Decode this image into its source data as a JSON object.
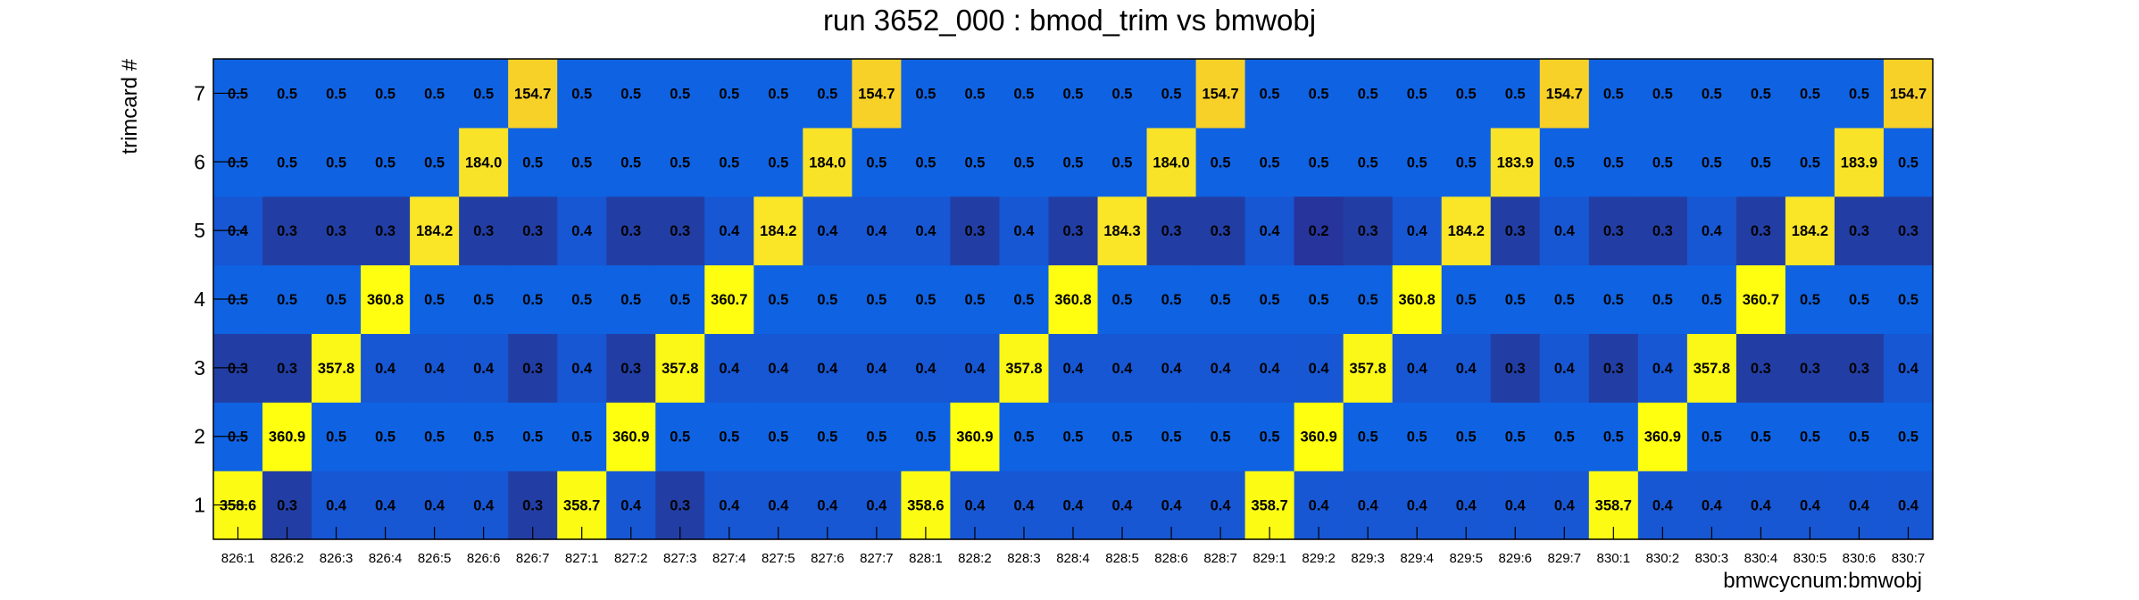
{
  "chart_data": {
    "type": "heatmap",
    "title": "run 3652_000 : bmod_trim vs bmwobj",
    "xlabel": "bmwcycnum:bmwobj",
    "ylabel": "trimcard #",
    "x_categories": [
      "826:1",
      "826:2",
      "826:3",
      "826:4",
      "826:5",
      "826:6",
      "826:7",
      "827:1",
      "827:2",
      "827:3",
      "827:4",
      "827:5",
      "827:6",
      "827:7",
      "828:1",
      "828:2",
      "828:3",
      "828:4",
      "828:5",
      "828:6",
      "828:7",
      "829:1",
      "829:2",
      "829:3",
      "829:4",
      "829:5",
      "829:6",
      "829:7",
      "830:1",
      "830:2",
      "830:3",
      "830:4",
      "830:5",
      "830:6",
      "830:7"
    ],
    "y_categories": [
      "1",
      "2",
      "3",
      "4",
      "5",
      "6",
      "7"
    ],
    "values": [
      [
        "358.6",
        "0.3",
        "0.4",
        "0.4",
        "0.4",
        "0.4",
        "0.3",
        "358.7",
        "0.4",
        "0.3",
        "0.4",
        "0.4",
        "0.4",
        "0.4",
        "358.6",
        "0.4",
        "0.4",
        "0.4",
        "0.4",
        "0.4",
        "0.4",
        "358.7",
        "0.4",
        "0.4",
        "0.4",
        "0.4",
        "0.4",
        "0.4",
        "358.7",
        "0.4",
        "0.4",
        "0.4",
        "0.4",
        "0.4",
        "0.4"
      ],
      [
        "0.5",
        "360.9",
        "0.5",
        "0.5",
        "0.5",
        "0.5",
        "0.5",
        "0.5",
        "360.9",
        "0.5",
        "0.5",
        "0.5",
        "0.5",
        "0.5",
        "0.5",
        "360.9",
        "0.5",
        "0.5",
        "0.5",
        "0.5",
        "0.5",
        "0.5",
        "360.9",
        "0.5",
        "0.5",
        "0.5",
        "0.5",
        "0.5",
        "0.5",
        "360.9",
        "0.5",
        "0.5",
        "0.5",
        "0.5",
        "0.5"
      ],
      [
        "0.3",
        "0.3",
        "357.8",
        "0.4",
        "0.4",
        "0.4",
        "0.3",
        "0.4",
        "0.3",
        "357.8",
        "0.4",
        "0.4",
        "0.4",
        "0.4",
        "0.4",
        "0.4",
        "357.8",
        "0.4",
        "0.4",
        "0.4",
        "0.4",
        "0.4",
        "0.4",
        "357.8",
        "0.4",
        "0.4",
        "0.3",
        "0.4",
        "0.3",
        "0.4",
        "357.8",
        "0.3",
        "0.3",
        "0.3",
        "0.4"
      ],
      [
        "0.5",
        "0.5",
        "0.5",
        "360.8",
        "0.5",
        "0.5",
        "0.5",
        "0.5",
        "0.5",
        "0.5",
        "360.7",
        "0.5",
        "0.5",
        "0.5",
        "0.5",
        "0.5",
        "0.5",
        "360.8",
        "0.5",
        "0.5",
        "0.5",
        "0.5",
        "0.5",
        "0.5",
        "360.8",
        "0.5",
        "0.5",
        "0.5",
        "0.5",
        "0.5",
        "0.5",
        "360.7",
        "0.5",
        "0.5",
        "0.5"
      ],
      [
        "0.4",
        "0.3",
        "0.3",
        "0.3",
        "184.2",
        "0.3",
        "0.3",
        "0.4",
        "0.3",
        "0.3",
        "0.4",
        "184.2",
        "0.4",
        "0.4",
        "0.4",
        "0.3",
        "0.4",
        "0.3",
        "184.3",
        "0.3",
        "0.3",
        "0.4",
        "0.2",
        "0.3",
        "0.4",
        "184.2",
        "0.3",
        "0.4",
        "0.3",
        "0.3",
        "0.4",
        "0.3",
        "184.2",
        "0.3",
        "0.3"
      ],
      [
        "0.5",
        "0.5",
        "0.5",
        "0.5",
        "0.5",
        "184.0",
        "0.5",
        "0.5",
        "0.5",
        "0.5",
        "0.5",
        "0.5",
        "184.0",
        "0.5",
        "0.5",
        "0.5",
        "0.5",
        "0.5",
        "0.5",
        "184.0",
        "0.5",
        "0.5",
        "0.5",
        "0.5",
        "0.5",
        "0.5",
        "183.9",
        "0.5",
        "0.5",
        "0.5",
        "0.5",
        "0.5",
        "0.5",
        "183.9",
        "0.5"
      ],
      [
        "0.5",
        "0.5",
        "0.5",
        "0.5",
        "0.5",
        "0.5",
        "154.7",
        "0.5",
        "0.5",
        "0.5",
        "0.5",
        "0.5",
        "0.5",
        "154.7",
        "0.5",
        "0.5",
        "0.5",
        "0.5",
        "0.5",
        "0.5",
        "154.7",
        "0.5",
        "0.5",
        "0.5",
        "0.5",
        "0.5",
        "0.5",
        "154.7",
        "0.5",
        "0.5",
        "0.5",
        "0.5",
        "0.5",
        "0.5",
        "154.7"
      ]
    ],
    "cell_labels": true,
    "colors": {
      "0.2": "#26349c",
      "0.3": "#223ea4",
      "0.4": "#1757d4",
      "0.5": "#0f63e2",
      "154.7": "#f8d128",
      "183.9": "#f9e328",
      "184.0": "#f9e328",
      "184.2": "#fae527",
      "184.3": "#fae527",
      "357.8": "#fbf716",
      "358.6": "#fcfb14",
      "358.7": "#fcfb14",
      "360.7": "#fffe11",
      "360.8": "#fffe11",
      "360.9": "#ffff10"
    },
    "colormap": "ROOT kBird",
    "grid": false,
    "legend": "none"
  }
}
